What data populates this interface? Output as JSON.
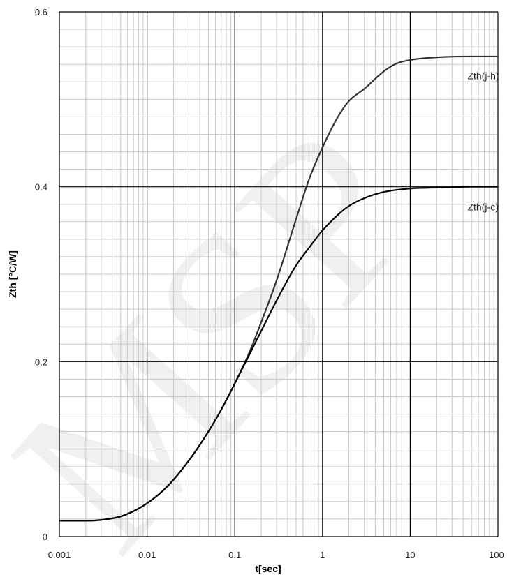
{
  "chart_data": {
    "type": "line",
    "title": "",
    "xlabel": "t[sec]",
    "ylabel": "Zth  [°C/W]",
    "x_scale": "log",
    "xlim": [
      0.001,
      100
    ],
    "ylim": [
      0,
      0.6
    ],
    "grid": true,
    "x_ticks": [
      {
        "value": 0.001,
        "label": "0.001"
      },
      {
        "value": 0.01,
        "label": "0.01"
      },
      {
        "value": 0.1,
        "label": "0.1"
      },
      {
        "value": 1,
        "label": "1"
      },
      {
        "value": 10,
        "label": "10"
      },
      {
        "value": 100,
        "label": "100"
      }
    ],
    "y_ticks": [
      {
        "value": 0,
        "label": "0"
      },
      {
        "value": 0.2,
        "label": "0.2"
      },
      {
        "value": 0.4,
        "label": "0.4"
      },
      {
        "value": 0.6,
        "label": "0.6"
      }
    ],
    "series": [
      {
        "name": "Zth(j-h)",
        "color": "#333333",
        "points": [
          [
            0.001,
            0.018
          ],
          [
            0.002,
            0.018
          ],
          [
            0.003,
            0.019
          ],
          [
            0.005,
            0.023
          ],
          [
            0.007,
            0.029
          ],
          [
            0.01,
            0.038
          ],
          [
            0.015,
            0.052
          ],
          [
            0.02,
            0.065
          ],
          [
            0.03,
            0.087
          ],
          [
            0.05,
            0.12
          ],
          [
            0.07,
            0.145
          ],
          [
            0.1,
            0.175
          ],
          [
            0.15,
            0.213
          ],
          [
            0.2,
            0.245
          ],
          [
            0.3,
            0.293
          ],
          [
            0.5,
            0.363
          ],
          [
            0.7,
            0.408
          ],
          [
            1,
            0.445
          ],
          [
            1.5,
            0.48
          ],
          [
            2,
            0.498
          ],
          [
            3,
            0.512
          ],
          [
            5,
            0.532
          ],
          [
            7,
            0.541
          ],
          [
            10,
            0.545
          ],
          [
            20,
            0.548
          ],
          [
            50,
            0.549
          ],
          [
            100,
            0.549
          ]
        ]
      },
      {
        "name": "Zth(j-c)",
        "color": "#000000",
        "points": [
          [
            0.001,
            0.018
          ],
          [
            0.002,
            0.018
          ],
          [
            0.003,
            0.019
          ],
          [
            0.005,
            0.023
          ],
          [
            0.007,
            0.029
          ],
          [
            0.01,
            0.038
          ],
          [
            0.015,
            0.052
          ],
          [
            0.02,
            0.065
          ],
          [
            0.03,
            0.087
          ],
          [
            0.05,
            0.12
          ],
          [
            0.07,
            0.145
          ],
          [
            0.1,
            0.175
          ],
          [
            0.15,
            0.21
          ],
          [
            0.2,
            0.235
          ],
          [
            0.3,
            0.27
          ],
          [
            0.5,
            0.31
          ],
          [
            0.7,
            0.33
          ],
          [
            1,
            0.35
          ],
          [
            1.5,
            0.368
          ],
          [
            2,
            0.378
          ],
          [
            3,
            0.387
          ],
          [
            5,
            0.394
          ],
          [
            10,
            0.398
          ],
          [
            20,
            0.399
          ],
          [
            50,
            0.4
          ],
          [
            100,
            0.4
          ]
        ]
      }
    ],
    "series_labels": [
      {
        "series": 0,
        "text": "Zth(j-h)",
        "x": 45,
        "y": 0.523
      },
      {
        "series": 1,
        "text": "Zth(j-c)",
        "x": 45,
        "y": 0.373
      }
    ]
  },
  "watermark": {
    "text": "MSP",
    "color": "#bdbdbd"
  }
}
